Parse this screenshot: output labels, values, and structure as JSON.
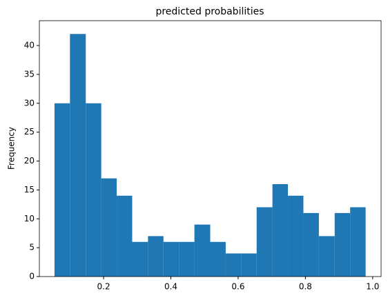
{
  "chart_data": {
    "type": "histogram",
    "title": "predicted probabilities",
    "y_label": "Frequency",
    "bins": [
      0.054,
      0.1,
      0.147,
      0.193,
      0.239,
      0.285,
      0.332,
      0.378,
      0.424,
      0.47,
      0.517,
      0.563,
      0.609,
      0.655,
      0.702,
      0.748,
      0.794,
      0.84,
      0.887,
      0.933,
      0.979
    ],
    "values": [
      30,
      42,
      30,
      17,
      14,
      6,
      7,
      6,
      6,
      9,
      6,
      4,
      4,
      12,
      16,
      14,
      11,
      7,
      11,
      12
    ],
    "color": "#1f77b4",
    "xlim": [
      0.009,
      1.025
    ],
    "xticks": [
      0.2,
      0.4,
      0.6,
      0.8,
      {
        "value": 1.0,
        "label": "1.0"
      }
    ],
    "ylim": [
      0,
      44.3
    ],
    "yticks": [
      0,
      5,
      10,
      15,
      20,
      25,
      30,
      35,
      40
    ]
  }
}
